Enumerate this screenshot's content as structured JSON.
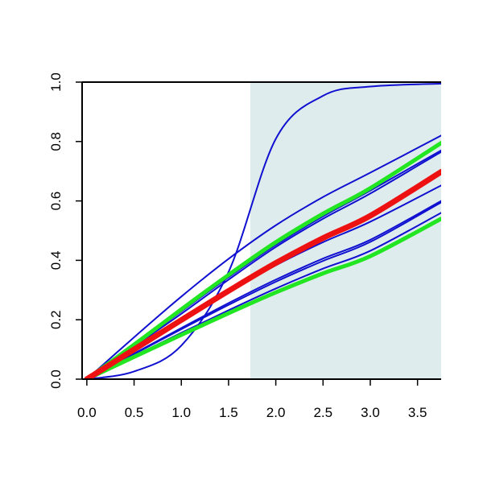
{
  "chart_data": {
    "type": "line",
    "title": "",
    "xlabel": "",
    "ylabel": "",
    "xlim": [
      -0.05,
      3.75
    ],
    "ylim": [
      0.0,
      1.0
    ],
    "x_ticks": [
      0.0,
      0.5,
      1.0,
      1.5,
      2.0,
      2.5,
      3.0,
      3.5
    ],
    "x_tick_labels": [
      "0.0",
      "0.5",
      "1.0",
      "1.5",
      "2.0",
      "2.5",
      "3.0",
      "3.5"
    ],
    "y_ticks": [
      0.0,
      0.2,
      0.4,
      0.6,
      0.8,
      1.0
    ],
    "y_tick_labels": [
      "0.0",
      "0.2",
      "0.4",
      "0.6",
      "0.8",
      "1.0"
    ],
    "grid": false,
    "legend": "none",
    "shaded_region": {
      "x_from": 1.73,
      "x_to": 3.75,
      "color": "#dfeced"
    },
    "colors": {
      "blue": "#1010d0",
      "green": "#22e622",
      "red": "#ee1111"
    },
    "series": [
      {
        "color": "blue",
        "width": 2,
        "x": [
          0,
          0.5,
          1.0,
          1.5,
          2.0,
          2.5,
          3.0,
          3.75
        ],
        "y": [
          0,
          0.026,
          0.113,
          0.361,
          0.809,
          0.954,
          0.985,
          0.995
        ]
      },
      {
        "color": "blue",
        "width": 2,
        "x": [
          0,
          0.5,
          1.0,
          1.5,
          2.0,
          2.5,
          3.0,
          3.75
        ],
        "y": [
          0,
          0.141,
          0.278,
          0.405,
          0.518,
          0.613,
          0.695,
          0.82
        ]
      },
      {
        "color": "blue",
        "width": 2,
        "x": [
          0,
          0.5,
          1.0,
          1.5,
          2.0,
          2.5,
          3.0,
          3.75
        ],
        "y": [
          0,
          0.112,
          0.228,
          0.343,
          0.452,
          0.548,
          0.635,
          0.77
        ]
      },
      {
        "color": "blue",
        "width": 2,
        "x": [
          0,
          0.5,
          1.0,
          1.5,
          2.0,
          2.5,
          3.0,
          3.75
        ],
        "y": [
          0,
          0.11,
          0.22,
          0.335,
          0.445,
          0.54,
          0.625,
          0.765
        ]
      },
      {
        "color": "blue",
        "width": 2,
        "x": [
          0,
          0.5,
          1.0,
          1.5,
          2.0,
          2.5,
          3.0,
          3.75
        ],
        "y": [
          0,
          0.099,
          0.197,
          0.293,
          0.383,
          0.461,
          0.53,
          0.652
        ]
      },
      {
        "color": "blue",
        "width": 2,
        "x": [
          0,
          0.5,
          1.0,
          1.5,
          2.0,
          2.5,
          3.0,
          3.75
        ],
        "y": [
          0,
          0.086,
          0.172,
          0.256,
          0.335,
          0.406,
          0.469,
          0.6
        ]
      },
      {
        "color": "blue",
        "width": 2,
        "x": [
          0,
          0.5,
          1.0,
          1.5,
          2.0,
          2.5,
          3.0,
          3.75
        ],
        "y": [
          0,
          0.084,
          0.168,
          0.25,
          0.328,
          0.398,
          0.462,
          0.595
        ]
      },
      {
        "color": "blue",
        "width": 2,
        "x": [
          0,
          0.5,
          1.0,
          1.5,
          2.0,
          2.5,
          3.0,
          3.75
        ],
        "y": [
          0,
          0.078,
          0.156,
          0.232,
          0.305,
          0.372,
          0.432,
          0.56
        ]
      },
      {
        "color": "green",
        "width": 5,
        "x": [
          0,
          0.5,
          1.0,
          1.5,
          2.0,
          2.5,
          3.0,
          3.75
        ],
        "y": [
          0,
          0.116,
          0.235,
          0.351,
          0.461,
          0.557,
          0.643,
          0.795
        ]
      },
      {
        "color": "green",
        "width": 5,
        "x": [
          0,
          0.5,
          1.0,
          1.5,
          2.0,
          2.5,
          3.0,
          3.75
        ],
        "y": [
          0,
          0.075,
          0.149,
          0.222,
          0.292,
          0.356,
          0.414,
          0.54
        ]
      },
      {
        "color": "red",
        "width": 7,
        "x": [
          0,
          0.5,
          1.0,
          1.5,
          2.0,
          2.5,
          3.0,
          3.75
        ],
        "y": [
          0,
          0.1,
          0.199,
          0.297,
          0.391,
          0.475,
          0.55,
          0.698
        ]
      }
    ]
  }
}
